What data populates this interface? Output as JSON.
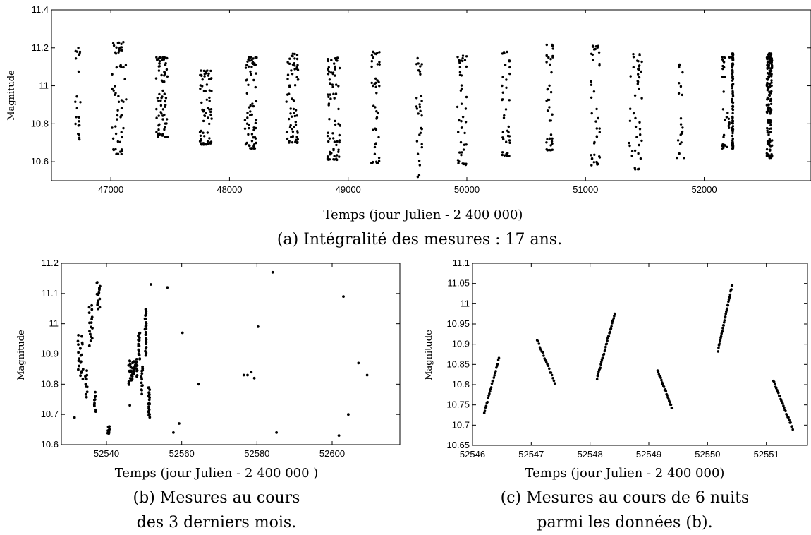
{
  "chart_data": [
    {
      "type": "scatter",
      "caption": "(a) Intégralité des mesures : 17 ans.",
      "xlabel": "Temps (jour Julien - 2 400 000)",
      "ylabel": "Magnitude",
      "xlim": [
        46500,
        52900
      ],
      "ylim": [
        10.5,
        11.4
      ],
      "xticks": [
        47000,
        48000,
        49000,
        50000,
        51000,
        52000
      ],
      "yticks": [
        10.6,
        10.8,
        11,
        11.2,
        11.4
      ],
      "grid": false,
      "clusters": [
        {
          "x": 46720,
          "w": 50,
          "ymin": 10.68,
          "ymax": 11.2,
          "n": 22
        },
        {
          "x": 47070,
          "w": 120,
          "ymin": 10.64,
          "ymax": 11.23,
          "n": 60
        },
        {
          "x": 47430,
          "w": 100,
          "ymin": 10.73,
          "ymax": 11.15,
          "n": 75
        },
        {
          "x": 47800,
          "w": 100,
          "ymin": 10.69,
          "ymax": 11.08,
          "n": 70
        },
        {
          "x": 48180,
          "w": 100,
          "ymin": 10.67,
          "ymax": 11.15,
          "n": 70
        },
        {
          "x": 48530,
          "w": 100,
          "ymin": 10.7,
          "ymax": 11.17,
          "n": 70
        },
        {
          "x": 48880,
          "w": 110,
          "ymin": 10.61,
          "ymax": 11.15,
          "n": 75
        },
        {
          "x": 49230,
          "w": 70,
          "ymin": 10.59,
          "ymax": 11.18,
          "n": 45
        },
        {
          "x": 49600,
          "w": 50,
          "ymin": 10.52,
          "ymax": 11.15,
          "n": 30
        },
        {
          "x": 49960,
          "w": 80,
          "ymin": 10.58,
          "ymax": 11.16,
          "n": 45
        },
        {
          "x": 50330,
          "w": 70,
          "ymin": 10.63,
          "ymax": 11.18,
          "n": 40
        },
        {
          "x": 50700,
          "w": 60,
          "ymin": 10.66,
          "ymax": 11.22,
          "n": 40
        },
        {
          "x": 51080,
          "w": 80,
          "ymin": 10.58,
          "ymax": 11.21,
          "n": 40
        },
        {
          "x": 51420,
          "w": 110,
          "ymin": 10.56,
          "ymax": 11.18,
          "n": 45
        },
        {
          "x": 51800,
          "w": 60,
          "ymin": 10.62,
          "ymax": 11.12,
          "n": 20
        },
        {
          "x": 52180,
          "w": 70,
          "ymin": 10.67,
          "ymax": 11.17,
          "n": 30
        },
        {
          "x": 52240,
          "w": 8,
          "ymin": 10.67,
          "ymax": 11.17,
          "n": 120
        },
        {
          "x": 52550,
          "w": 45,
          "ymin": 10.62,
          "ymax": 11.17,
          "n": 160
        }
      ]
    },
    {
      "type": "scatter",
      "caption_line1": "(b) Mesures au cours",
      "caption_line2": "des 3 derniers mois.",
      "xlabel": "Temps (jour Julien - 2 400 000 )",
      "ylabel": "Magnitude",
      "xlim": [
        52528,
        52618
      ],
      "ylim": [
        10.6,
        11.2
      ],
      "xticks": [
        52540,
        52560,
        52580,
        52600
      ],
      "yticks": [
        10.6,
        10.7,
        10.8,
        10.9,
        11,
        11.1,
        11.2
      ],
      "grid": false,
      "nights": [
        {
          "x0": 52532.4,
          "x1": 52533.8,
          "y0": 10.82,
          "y1": 10.96,
          "n": 22
        },
        {
          "x0": 52534.3,
          "x1": 52535.0,
          "y0": 10.76,
          "y1": 10.84,
          "n": 10
        },
        {
          "x0": 52535.4,
          "x1": 52536.3,
          "y0": 10.93,
          "y1": 11.06,
          "n": 16
        },
        {
          "x0": 52536.7,
          "x1": 52537.2,
          "y0": 10.71,
          "y1": 10.77,
          "n": 10
        },
        {
          "x0": 52537.4,
          "x1": 52538.3,
          "y0": 11.05,
          "y1": 11.14,
          "n": 16
        },
        {
          "x0": 52540.2,
          "x1": 52540.8,
          "y0": 10.64,
          "y1": 10.66,
          "n": 10
        },
        {
          "x0": 52545.8,
          "x1": 52547.0,
          "y0": 10.8,
          "y1": 10.88,
          "n": 24
        },
        {
          "x0": 52547.2,
          "x1": 52548.2,
          "y0": 10.83,
          "y1": 10.88,
          "n": 20
        },
        {
          "x0": 52548.4,
          "x1": 52549.0,
          "y0": 10.88,
          "y1": 10.97,
          "n": 16
        },
        {
          "x0": 52549.2,
          "x1": 52549.6,
          "y0": 10.77,
          "y1": 10.86,
          "n": 14
        },
        {
          "x0": 52550.2,
          "x1": 52550.6,
          "y0": 10.9,
          "y1": 11.05,
          "n": 26
        },
        {
          "x0": 52551.1,
          "x1": 52551.5,
          "y0": 10.69,
          "y1": 10.79,
          "n": 22
        }
      ],
      "points": [
        [
          52531.5,
          10.69
        ],
        [
          52546.2,
          10.73
        ],
        [
          52551.8,
          11.13
        ],
        [
          52556.2,
          11.12
        ],
        [
          52557.8,
          10.64
        ],
        [
          52559.3,
          10.67
        ],
        [
          52560.2,
          10.97
        ],
        [
          52564.5,
          10.8
        ],
        [
          52576.5,
          10.83
        ],
        [
          52577.5,
          10.83
        ],
        [
          52578.5,
          10.84
        ],
        [
          52579.3,
          10.82
        ],
        [
          52580.3,
          10.99
        ],
        [
          52584.2,
          11.17
        ],
        [
          52585.2,
          10.64
        ],
        [
          52601.8,
          10.63
        ],
        [
          52603.0,
          11.09
        ],
        [
          52604.3,
          10.7
        ],
        [
          52607.0,
          10.87
        ],
        [
          52609.3,
          10.83
        ]
      ]
    },
    {
      "type": "scatter",
      "caption": "(c) Mesures au cours de 6 nuits parmi les données (b).",
      "caption_line1": "(c) Mesures au cours de 6 nuits",
      "caption_line2": "parmi les données (b).",
      "xlabel": "Temps (jour Julien - 2 400 000)",
      "ylabel": "Magnitude",
      "xlim": [
        52546.0,
        52551.7
      ],
      "ylim": [
        10.65,
        11.1
      ],
      "xticks": [
        52546,
        52547,
        52548,
        52549,
        52550,
        52551
      ],
      "yticks": [
        10.65,
        10.7,
        10.75,
        10.8,
        10.85,
        10.9,
        10.95,
        11,
        11.05,
        11.1
      ],
      "grid": false,
      "nights": [
        {
          "x0": 52546.2,
          "x1": 52546.45,
          "y0": 10.73,
          "y1": 10.865,
          "n": 24
        },
        {
          "x0": 52547.1,
          "x1": 52547.4,
          "y0": 10.91,
          "y1": 10.805,
          "n": 20
        },
        {
          "x0": 52548.12,
          "x1": 52548.42,
          "y0": 10.815,
          "y1": 10.975,
          "n": 34
        },
        {
          "x0": 52549.15,
          "x1": 52549.4,
          "y0": 10.835,
          "y1": 10.74,
          "n": 24
        },
        {
          "x0": 52550.18,
          "x1": 52550.42,
          "y0": 10.885,
          "y1": 11.048,
          "n": 34
        },
        {
          "x0": 52551.12,
          "x1": 52551.45,
          "y0": 10.81,
          "y1": 10.69,
          "n": 28
        }
      ]
    }
  ]
}
